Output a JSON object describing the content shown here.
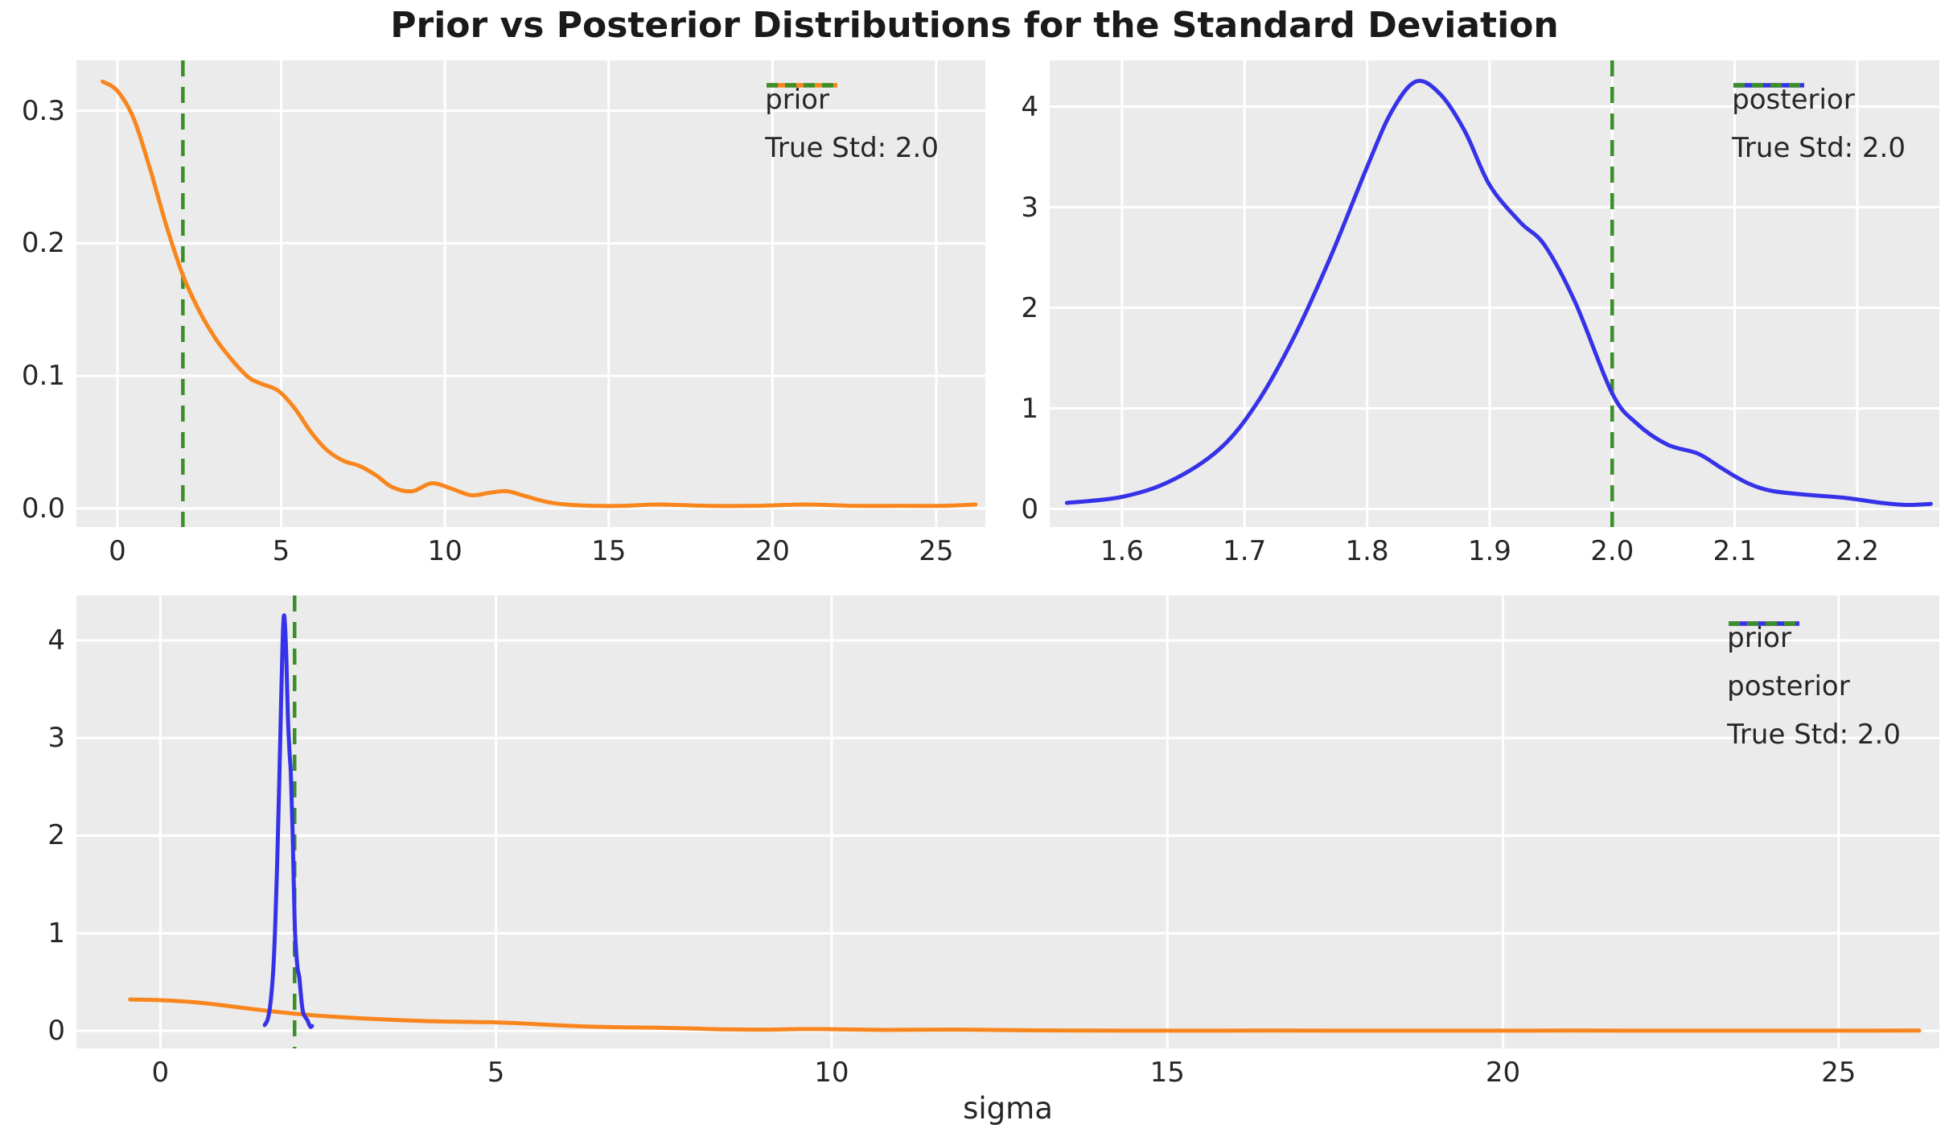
{
  "figure": {
    "background": "#ffffff",
    "plot_background": "#ebebeb",
    "grid_color": "#ffffff",
    "text_color": "#262626"
  },
  "chart_data": {
    "type": "line",
    "title": "Prior vs Posterior Distributions for the Standard Deviation",
    "xlabel": "sigma",
    "grid": true,
    "series": {
      "prior": {
        "label": "prior",
        "color": "#f8861d",
        "x": [
          -0.45,
          0,
          0.5,
          1.0,
          1.5,
          2.0,
          2.5,
          3.0,
          3.5,
          4.0,
          4.4,
          4.9,
          5.4,
          5.9,
          6.4,
          6.9,
          7.4,
          7.9,
          8.4,
          9.0,
          9.6,
          10.2,
          10.8,
          11.4,
          11.9,
          12.5,
          13.1,
          13.7,
          14.5,
          15.5,
          16.5,
          18.0,
          19.5,
          21.0,
          22.5,
          24.0,
          25.2,
          26.2
        ],
        "y": [
          0.322,
          0.315,
          0.294,
          0.256,
          0.213,
          0.176,
          0.149,
          0.128,
          0.112,
          0.099,
          0.094,
          0.089,
          0.076,
          0.058,
          0.044,
          0.036,
          0.032,
          0.025,
          0.016,
          0.013,
          0.019,
          0.015,
          0.01,
          0.012,
          0.013,
          0.009,
          0.005,
          0.003,
          0.002,
          0.002,
          0.003,
          0.002,
          0.002,
          0.003,
          0.002,
          0.002,
          0.002,
          0.003
        ]
      },
      "posterior": {
        "label": "posterior",
        "color": "#3632e8",
        "x": [
          1.555,
          1.6,
          1.64,
          1.68,
          1.71,
          1.74,
          1.77,
          1.8,
          1.82,
          1.84,
          1.86,
          1.88,
          1.9,
          1.925,
          1.945,
          1.97,
          2.0,
          2.02,
          2.045,
          2.07,
          2.09,
          2.11,
          2.13,
          2.16,
          2.19,
          2.22,
          2.24,
          2.26
        ],
        "y": [
          0.06,
          0.12,
          0.28,
          0.6,
          1.05,
          1.7,
          2.5,
          3.4,
          3.95,
          4.25,
          4.12,
          3.75,
          3.22,
          2.85,
          2.62,
          2.05,
          1.15,
          0.85,
          0.64,
          0.55,
          0.4,
          0.26,
          0.18,
          0.14,
          0.11,
          0.06,
          0.04,
          0.05
        ]
      },
      "true_std": {
        "label": "True Std: 2.0",
        "value": 2.0,
        "color": "#3a8f29",
        "style": "dashed"
      }
    },
    "panels": [
      {
        "name": "top-left",
        "series": [
          "prior"
        ],
        "vline": "true_std",
        "legend": [
          "prior",
          "true_std"
        ],
        "xlim": [
          -1.25,
          26.5
        ],
        "ylim": [
          -0.014,
          0.338
        ],
        "xticks": {
          "values": [
            0,
            5,
            10,
            15,
            20,
            25
          ],
          "labels": [
            "0",
            "5",
            "10",
            "15",
            "20",
            "25"
          ]
        },
        "yticks": {
          "values": [
            0.0,
            0.1,
            0.2,
            0.3
          ],
          "labels": [
            "0.0",
            "0.1",
            "0.2",
            "0.3"
          ]
        }
      },
      {
        "name": "top-right",
        "series": [
          "posterior"
        ],
        "vline": "true_std",
        "legend": [
          "posterior",
          "true_std"
        ],
        "xlim": [
          1.541,
          2.267
        ],
        "ylim": [
          -0.18,
          4.46
        ],
        "xticks": {
          "values": [
            1.6,
            1.7,
            1.8,
            1.9,
            2.0,
            2.1,
            2.2
          ],
          "labels": [
            "1.6",
            "1.7",
            "1.8",
            "1.9",
            "2.0",
            "2.1",
            "2.2"
          ]
        },
        "yticks": {
          "values": [
            0,
            1,
            2,
            3,
            4
          ],
          "labels": [
            "0",
            "1",
            "2",
            "3",
            "4"
          ]
        }
      },
      {
        "name": "bottom",
        "series": [
          "prior",
          "posterior"
        ],
        "vline": "true_std",
        "legend": [
          "prior",
          "posterior",
          "true_std"
        ],
        "xlim": [
          -1.25,
          26.5
        ],
        "ylim": [
          -0.18,
          4.46
        ],
        "xticks": {
          "values": [
            0,
            5,
            10,
            15,
            20,
            25
          ],
          "labels": [
            "0",
            "5",
            "10",
            "15",
            "20",
            "25"
          ]
        },
        "yticks": {
          "values": [
            0,
            1,
            2,
            3,
            4
          ],
          "labels": [
            "0",
            "1",
            "2",
            "3",
            "4"
          ]
        }
      }
    ]
  }
}
